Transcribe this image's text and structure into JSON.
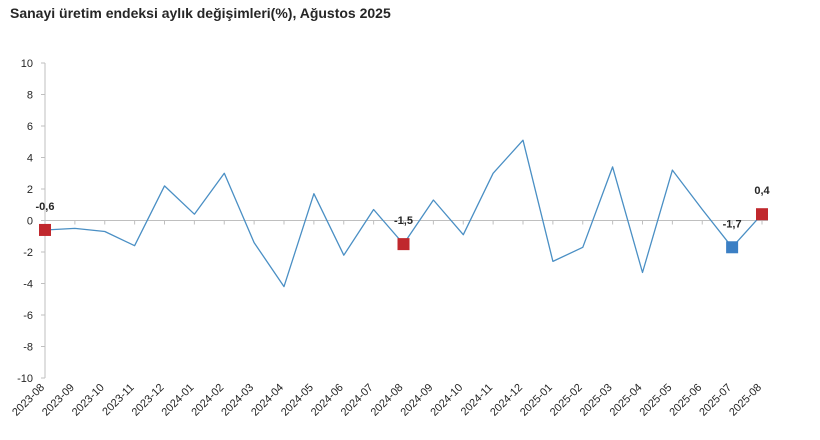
{
  "chart_data": {
    "type": "line",
    "title": "Sanayi üretim endeksi aylık değişimleri(%), Ağustos 2025",
    "xlabel": "",
    "ylabel": "",
    "ylim": [
      -10,
      10
    ],
    "yticks": [
      10,
      8,
      6,
      4,
      2,
      0,
      -2,
      -4,
      -6,
      -8,
      -10
    ],
    "grid": false,
    "legend": "none",
    "categories": [
      "2023-08",
      "2023-09",
      "2023-10",
      "2023-11",
      "2023-12",
      "2024-01",
      "2024-02",
      "2024-03",
      "2024-04",
      "2024-05",
      "2024-06",
      "2024-07",
      "2024-08",
      "2024-09",
      "2024-10",
      "2024-11",
      "2024-12",
      "2025-01",
      "2025-02",
      "2025-03",
      "2025-04",
      "2025-05",
      "2025-06",
      "2025-07",
      "2025-08"
    ],
    "series": [
      {
        "name": "Sanayi üretim endeksi aylık değişimi",
        "color": "#4a8fc4",
        "values": [
          -0.6,
          -0.5,
          -0.7,
          -1.6,
          2.2,
          0.4,
          3.0,
          -1.4,
          -4.2,
          1.7,
          -2.2,
          0.7,
          -1.5,
          1.3,
          -0.9,
          3.0,
          5.1,
          -2.6,
          -1.7,
          3.4,
          -3.3,
          3.2,
          0.7,
          -1.7,
          0.4
        ]
      }
    ],
    "highlights": [
      {
        "index": 0,
        "label": "-0,6",
        "color": "#c0282d"
      },
      {
        "index": 12,
        "label": "-1,5",
        "color": "#c0282d"
      },
      {
        "index": 23,
        "label": "-1,7",
        "color": "#3b7fc4"
      },
      {
        "index": 24,
        "label": "0,4",
        "color": "#c0282d"
      }
    ],
    "axis_color": "#bfbfbf"
  }
}
